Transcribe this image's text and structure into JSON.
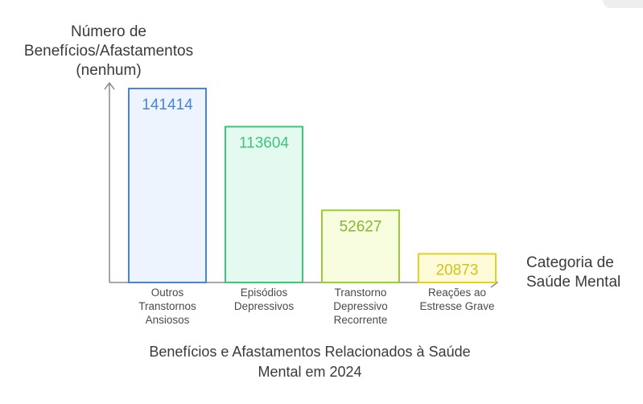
{
  "chart_data": {
    "type": "bar",
    "title": "Benefícios e Afastamentos Relacionados à Saúde Mental em 2024",
    "ylabel": "Número de Benefícios/Afastamentos (nenhum)",
    "xlabel": "Categoria de Saúde Mental",
    "categories": [
      "Outros Transtornos Ansiosos",
      "Episódios Depressivos",
      "Transtorno Depressivo Recorrente",
      "Reações ao Estresse Grave"
    ],
    "values": [
      141414,
      113604,
      52627,
      20873
    ],
    "ylim": [
      0,
      141414
    ],
    "grid": false,
    "colors": {
      "fills": [
        "#eef4fd",
        "#e4faf0",
        "#f8fde0",
        "#fdfbd8"
      ],
      "strokes": [
        "#4a84d4",
        "#3ec57a",
        "#9acc34",
        "#e4d21c"
      ],
      "labels": [
        "#4a84d4",
        "#3ec57a",
        "#86b82e",
        "#d4c21a"
      ],
      "axis": "#8c8c8c"
    }
  }
}
